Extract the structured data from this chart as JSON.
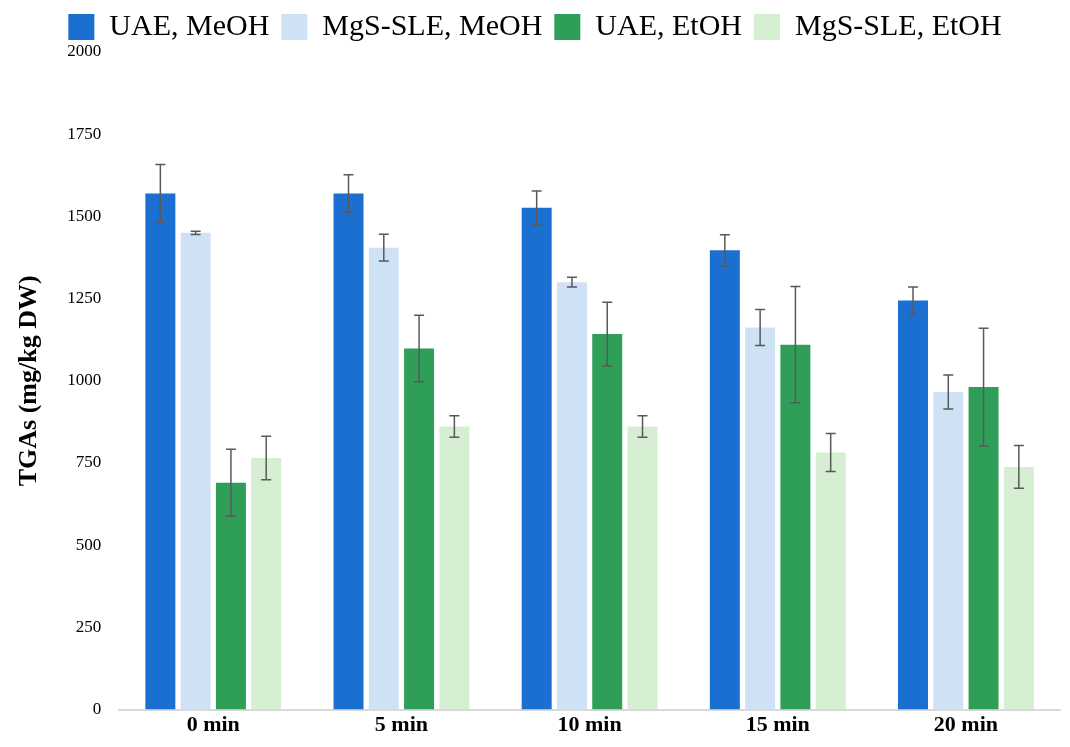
{
  "chart_data": {
    "type": "bar",
    "ylabel": "TGAs (mg/kg DW)",
    "categories": [
      "0 min",
      "5 min",
      "10 min",
      "15 min",
      "20 min"
    ],
    "series": [
      {
        "name": "UAE, MeOH",
        "color": "#1a6fd0",
        "values": [
          1570,
          1570,
          1526,
          1397,
          1244
        ],
        "errors": [
          88,
          57,
          51,
          47,
          41
        ]
      },
      {
        "name": "MgS-SLE, MeOH",
        "color": "#cfe2f5",
        "values": [
          1450,
          1405,
          1300,
          1162,
          966
        ],
        "errors": [
          5,
          41,
          15,
          55,
          52
        ]
      },
      {
        "name": "UAE, EtOH",
        "color": "#2e9e58",
        "values": [
          690,
          1098,
          1142,
          1110,
          981
        ],
        "errors": [
          102,
          101,
          97,
          177,
          179
        ]
      },
      {
        "name": "MgS-SLE, EtOH",
        "color": "#d6eed2",
        "values": [
          765,
          861,
          861,
          782,
          738
        ],
        "errors": [
          66,
          33,
          33,
          58,
          65
        ]
      }
    ],
    "ylim": [
      0,
      2000
    ],
    "yticks": [
      0,
      250,
      500,
      750,
      1000,
      1250,
      1500,
      1750,
      2000
    ],
    "grid": false,
    "legend": "top"
  }
}
